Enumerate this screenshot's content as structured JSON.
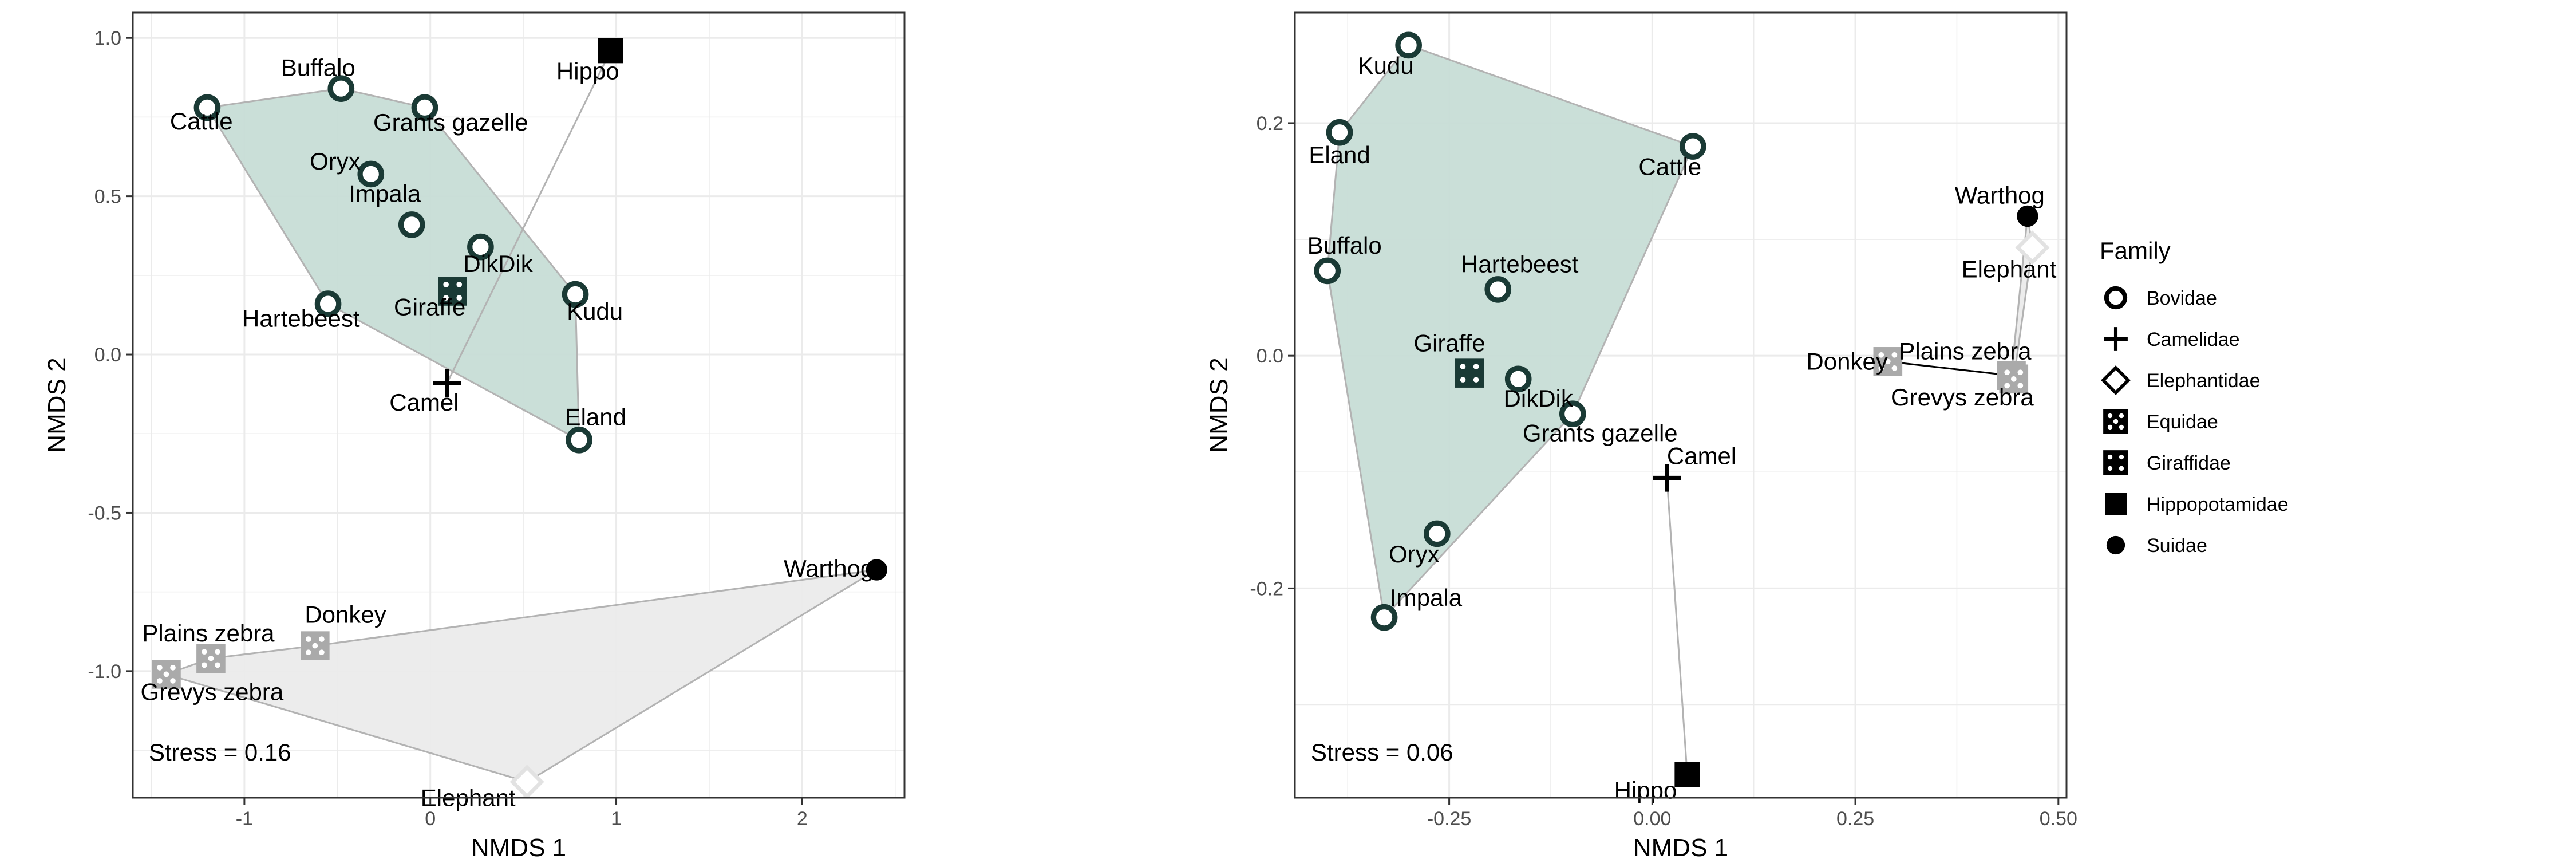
{
  "legend": {
    "title": "Family",
    "items": [
      {
        "label": "Bovidae",
        "shape": "ring"
      },
      {
        "label": "Camelidae",
        "shape": "plus"
      },
      {
        "label": "Elephantidae",
        "shape": "diamond"
      },
      {
        "label": "Equidae",
        "shape": "dice5"
      },
      {
        "label": "Giraffidae",
        "shape": "dice4"
      },
      {
        "label": "Hippopotamidae",
        "shape": "square"
      },
      {
        "label": "Suidae",
        "shape": "dot"
      }
    ]
  },
  "colors": {
    "bovidae_hull_fill": "#c7ddd6",
    "equidae_hull_fill": "#ebebeb",
    "hull_stroke": "#b3b3b3",
    "grid": "#ebebeb",
    "dark_marker": "#1a3a35",
    "equidae_marker": "#aaaaaa",
    "elephant_marker": "#e2e2e2"
  },
  "chart_data": [
    {
      "type": "scatter",
      "xlabel": "NMDS 1",
      "ylabel": "NMDS 2",
      "xlim": [
        -1.6,
        2.55
      ],
      "ylim": [
        -1.4,
        1.08
      ],
      "xticks": [
        -1,
        0,
        1,
        2
      ],
      "xtick_labels": [
        "-1",
        "0",
        "1",
        "2"
      ],
      "yticks": [
        -1.0,
        -0.5,
        0.0,
        0.5,
        1.0
      ],
      "ytick_labels": [
        "-1.0",
        "-0.5",
        "0.0",
        "0.5",
        "1.0"
      ],
      "grid": true,
      "stress_text": "Stress =  0.16",
      "points": [
        {
          "name": "Cattle",
          "family": "Bovidae",
          "x": -1.2,
          "y": 0.78
        },
        {
          "name": "Buffalo",
          "family": "Bovidae",
          "x": -0.48,
          "y": 0.84
        },
        {
          "name": "Grants gazelle",
          "family": "Bovidae",
          "x": -0.03,
          "y": 0.78
        },
        {
          "name": "Oryx",
          "family": "Bovidae",
          "x": -0.32,
          "y": 0.57
        },
        {
          "name": "Impala",
          "family": "Bovidae",
          "x": -0.1,
          "y": 0.41
        },
        {
          "name": "DikDik",
          "family": "Bovidae",
          "x": 0.27,
          "y": 0.34
        },
        {
          "name": "Hartebeest",
          "family": "Bovidae",
          "x": -0.55,
          "y": 0.16
        },
        {
          "name": "Kudu",
          "family": "Bovidae",
          "x": 0.78,
          "y": 0.19
        },
        {
          "name": "Eland",
          "family": "Bovidae",
          "x": 0.8,
          "y": -0.27
        },
        {
          "name": "Giraffe",
          "family": "Giraffidae",
          "x": 0.12,
          "y": 0.2
        },
        {
          "name": "Camel",
          "family": "Camelidae",
          "x": 0.09,
          "y": -0.09
        },
        {
          "name": "Hippo",
          "family": "Hippopotamidae",
          "x": 0.97,
          "y": 0.96
        },
        {
          "name": "Warthog",
          "family": "Suidae",
          "x": 2.4,
          "y": -0.68
        },
        {
          "name": "Plains zebra",
          "family": "Equidae",
          "x": -1.18,
          "y": -0.96
        },
        {
          "name": "Donkey",
          "family": "Equidae",
          "x": -0.62,
          "y": -0.92
        },
        {
          "name": "Grevys zebra",
          "family": "Equidae",
          "x": -1.42,
          "y": -1.01
        },
        {
          "name": "Elephant",
          "family": "Elephantidae",
          "x": 0.52,
          "y": -1.35
        }
      ],
      "hulls": [
        {
          "family": "Bovidae",
          "members": [
            "Cattle",
            "Buffalo",
            "Grants gazelle",
            "Kudu",
            "Eland",
            "Hartebeest"
          ]
        },
        {
          "family": "Equidae+Elephantidae+Suidae",
          "members": [
            "Grevys zebra",
            "Plains zebra",
            "Donkey",
            "Warthog",
            "Elephant"
          ]
        }
      ],
      "connectors": [
        {
          "from": "Camel",
          "to": "Hippo"
        }
      ]
    },
    {
      "type": "scatter",
      "xlabel": "NMDS 1",
      "ylabel": "NMDS 2",
      "xlim": [
        -0.44,
        0.51
      ],
      "ylim": [
        -0.38,
        0.295
      ],
      "xticks": [
        -0.25,
        0.0,
        0.25,
        0.5
      ],
      "xtick_labels": [
        "-0.25",
        "0.00",
        "0.25",
        "0.50"
      ],
      "yticks": [
        -0.2,
        0.0,
        0.2
      ],
      "ytick_labels": [
        "-0.2",
        "0.0",
        "0.2"
      ],
      "grid": true,
      "stress_text": "Stress =  0.06",
      "points": [
        {
          "name": "Kudu",
          "family": "Bovidae",
          "x": -0.3,
          "y": 0.267
        },
        {
          "name": "Eland",
          "family": "Bovidae",
          "x": -0.385,
          "y": 0.192
        },
        {
          "name": "Cattle",
          "family": "Bovidae",
          "x": 0.05,
          "y": 0.18
        },
        {
          "name": "Buffalo",
          "family": "Bovidae",
          "x": -0.4,
          "y": 0.073
        },
        {
          "name": "Hartebeest",
          "family": "Bovidae",
          "x": -0.19,
          "y": 0.057
        },
        {
          "name": "DikDik",
          "family": "Bovidae",
          "x": -0.165,
          "y": -0.02
        },
        {
          "name": "Grants gazelle",
          "family": "Bovidae",
          "x": -0.098,
          "y": -0.05
        },
        {
          "name": "Oryx",
          "family": "Bovidae",
          "x": -0.265,
          "y": -0.153
        },
        {
          "name": "Impala",
          "family": "Bovidae",
          "x": -0.33,
          "y": -0.225
        },
        {
          "name": "Giraffe",
          "family": "Giraffidae",
          "x": -0.225,
          "y": -0.015
        },
        {
          "name": "Camel",
          "family": "Camelidae",
          "x": 0.018,
          "y": -0.105
        },
        {
          "name": "Hippo",
          "family": "Hippopotamidae",
          "x": 0.043,
          "y": -0.36
        },
        {
          "name": "Warthog",
          "family": "Suidae",
          "x": 0.462,
          "y": 0.12
        },
        {
          "name": "Elephant",
          "family": "Elephantidae",
          "x": 0.468,
          "y": 0.093
        },
        {
          "name": "Plains zebra",
          "family": "Equidae",
          "x": 0.442,
          "y": -0.017
        },
        {
          "name": "Grevys zebra",
          "family": "Equidae",
          "x": 0.445,
          "y": -0.02
        },
        {
          "name": "Donkey",
          "family": "Equidae",
          "x": 0.29,
          "y": -0.005
        }
      ],
      "hulls": [
        {
          "family": "Bovidae",
          "members": [
            "Kudu",
            "Cattle",
            "Grants gazelle",
            "Impala",
            "Buffalo",
            "Eland"
          ]
        },
        {
          "family": "Equidae+Elephantidae+Suidae",
          "members": [
            "Warthog",
            "Elephant",
            "Grevys zebra",
            "Plains zebra"
          ]
        }
      ],
      "connectors": [
        {
          "from": "Camel",
          "to": "Hippo"
        },
        {
          "from": "Donkey",
          "to": "Plains zebra"
        }
      ]
    }
  ]
}
